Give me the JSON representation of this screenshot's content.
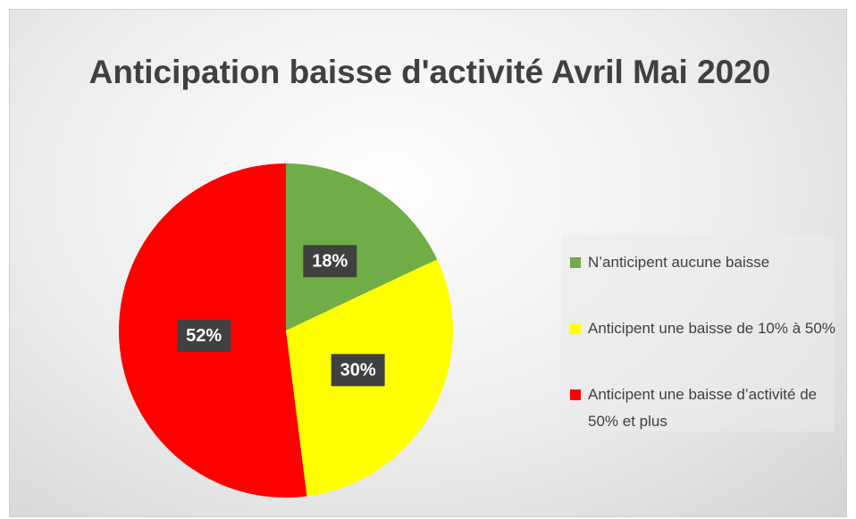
{
  "chart_data": {
    "type": "pie",
    "title": "Anticipation baisse d'activité Avril Mai 2020",
    "categories": [
      "N’anticipent aucune baisse",
      "Anticipent une baisse de 10% à 50%",
      "Anticipent une baisse d’activité de 50% et plus"
    ],
    "values": [
      18,
      30,
      52
    ],
    "value_labels": [
      "18%",
      "30%",
      "52%"
    ],
    "colors": [
      "#70ad47",
      "#ffff00",
      "#ff0000"
    ],
    "legend": "right"
  }
}
